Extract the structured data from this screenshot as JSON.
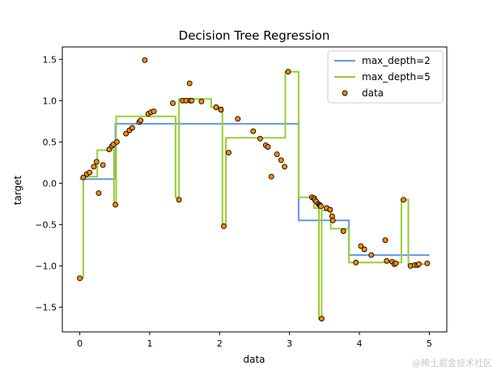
{
  "chart_data": {
    "type": "scatter",
    "title": "Decision Tree Regression",
    "xlabel": "data",
    "ylabel": "target",
    "xlim": [
      -0.25,
      5.25
    ],
    "ylim": [
      -1.8,
      1.65
    ],
    "xticks": [
      0,
      1,
      2,
      3,
      4,
      5
    ],
    "xtick_labels": [
      "0",
      "1",
      "2",
      "3",
      "4",
      "5"
    ],
    "yticks": [
      -1.5,
      -1.0,
      -0.5,
      0.0,
      0.5,
      1.0,
      1.5
    ],
    "ytick_labels": [
      "−1.5",
      "−1.0",
      "−0.5",
      "0.0",
      "0.5",
      "1.0",
      "1.5"
    ],
    "grid": false,
    "legend_position": "top-right",
    "colors": {
      "depth2": "#6495ed",
      "depth5": "#9acd32",
      "data_fill": "#ff8c00",
      "data_edge": "#000000"
    },
    "series": [
      {
        "name": "max_depth=2",
        "kind": "step",
        "x": [
          0.0,
          0.51,
          0.51,
          3.13,
          3.13,
          3.85,
          3.85,
          5.0
        ],
        "y": [
          0.05,
          0.05,
          0.72,
          0.72,
          -0.45,
          -0.45,
          -0.87,
          -0.87
        ]
      },
      {
        "name": "max_depth=5",
        "kind": "step",
        "x": [
          0.0,
          0.05,
          0.05,
          0.25,
          0.25,
          0.49,
          0.49,
          0.52,
          0.52,
          1.37,
          1.37,
          1.42,
          1.42,
          1.88,
          1.88,
          2.04,
          2.04,
          2.09,
          2.09,
          2.94,
          2.94,
          3.13,
          3.13,
          3.35,
          3.35,
          3.42,
          3.42,
          3.46,
          3.46,
          3.59,
          3.59,
          3.85,
          3.85,
          4.6,
          4.6,
          4.7,
          4.7,
          5.0
        ],
        "y": [
          -1.15,
          -1.15,
          0.08,
          0.08,
          0.4,
          0.4,
          -0.26,
          -0.26,
          0.81,
          0.81,
          -0.17,
          -0.17,
          1.02,
          1.02,
          0.92,
          0.92,
          -0.51,
          -0.51,
          0.55,
          0.55,
          1.35,
          1.35,
          -0.17,
          -0.17,
          -0.3,
          -0.3,
          -1.64,
          -1.64,
          -0.33,
          -0.33,
          -0.55,
          -0.55,
          -0.96,
          -0.96,
          -0.2,
          -0.2,
          -0.98,
          -0.98
        ]
      },
      {
        "name": "data",
        "kind": "scatter",
        "x": [
          0.0,
          0.05,
          0.1,
          0.14,
          0.2,
          0.24,
          0.27,
          0.33,
          0.42,
          0.46,
          0.48,
          0.51,
          0.53,
          0.66,
          0.71,
          0.75,
          0.85,
          0.87,
          0.93,
          0.98,
          1.02,
          1.06,
          1.33,
          1.42,
          1.47,
          1.52,
          1.57,
          1.58,
          1.6,
          1.74,
          1.95,
          2.02,
          2.06,
          2.13,
          2.26,
          2.48,
          2.58,
          2.66,
          2.69,
          2.74,
          2.82,
          2.88,
          2.93,
          2.98,
          3.32,
          3.35,
          3.36,
          3.38,
          3.41,
          3.43,
          3.44,
          3.45,
          3.46,
          3.53,
          3.58,
          3.61,
          3.62,
          3.77,
          3.95,
          4.02,
          4.07,
          4.17,
          4.37,
          4.39,
          4.47,
          4.5,
          4.52,
          4.63,
          4.73,
          4.79,
          4.83,
          4.85,
          4.97
        ],
        "y": [
          -1.15,
          0.07,
          0.11,
          0.13,
          0.2,
          0.26,
          -0.12,
          0.22,
          0.41,
          0.45,
          0.47,
          -0.26,
          0.5,
          0.6,
          0.64,
          0.67,
          0.74,
          0.76,
          1.49,
          0.84,
          0.86,
          0.87,
          0.97,
          -0.2,
          1.0,
          1.0,
          1.21,
          1.0,
          1.0,
          0.99,
          0.92,
          0.89,
          -0.52,
          0.37,
          0.78,
          0.63,
          0.54,
          0.46,
          0.44,
          0.08,
          0.35,
          0.28,
          0.2,
          1.35,
          -0.17,
          -0.18,
          -0.2,
          -0.22,
          -0.25,
          -0.26,
          -0.27,
          -0.28,
          -1.64,
          -0.3,
          -0.32,
          -0.4,
          -0.45,
          -0.58,
          -0.96,
          -0.76,
          -0.8,
          -0.87,
          -0.69,
          -0.94,
          -0.95,
          -0.98,
          -0.97,
          -0.2,
          -1.0,
          -0.99,
          -0.99,
          -0.98,
          -0.97
        ]
      }
    ]
  },
  "watermark": "@稀土掘金技术社区"
}
